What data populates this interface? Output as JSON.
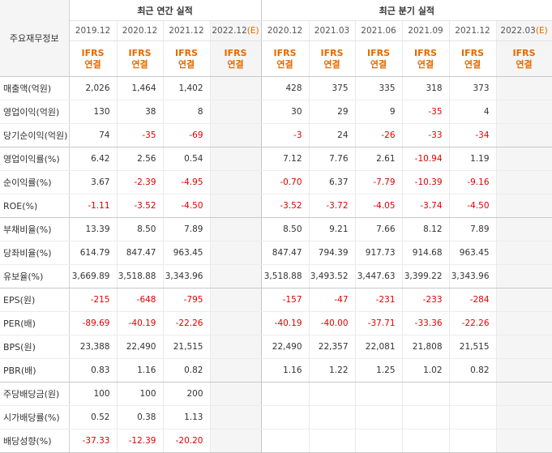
{
  "header": {
    "row_label_title": "주요재무정보",
    "annual_title": "최근 연간 실적",
    "quarterly_title": "최근 분기 실적",
    "std_label_line1": "IFRS",
    "std_label_line2": "연결",
    "annual_periods": [
      {
        "label": "2019.12",
        "estimate": false
      },
      {
        "label": "2020.12",
        "estimate": false
      },
      {
        "label": "2021.12",
        "estimate": false
      },
      {
        "label": "2022.12",
        "estimate": true
      }
    ],
    "quarterly_periods": [
      {
        "label": "2020.12",
        "estimate": false
      },
      {
        "label": "2021.03",
        "estimate": false
      },
      {
        "label": "2021.06",
        "estimate": false
      },
      {
        "label": "2021.09",
        "estimate": false
      },
      {
        "label": "2021.12",
        "estimate": false
      },
      {
        "label": "2022.03",
        "estimate": true
      }
    ],
    "estimate_mark": "(E)"
  },
  "rows": [
    {
      "label": "매출액(억원)",
      "annual": [
        "2,026",
        "1,464",
        "1,402",
        ""
      ],
      "quarterly": [
        "428",
        "375",
        "335",
        "318",
        "373",
        ""
      ]
    },
    {
      "label": "영업이익(억원)",
      "annual": [
        "130",
        "38",
        "8",
        ""
      ],
      "quarterly": [
        "30",
        "29",
        "9",
        "-35",
        "4",
        ""
      ]
    },
    {
      "label": "당기순이익(억원)",
      "annual": [
        "74",
        "-35",
        "-69",
        ""
      ],
      "quarterly": [
        "-3",
        "24",
        "-26",
        "-33",
        "-34",
        ""
      ],
      "group_end": true
    },
    {
      "label": "영업이익률(%)",
      "annual": [
        "6.42",
        "2.56",
        "0.54",
        ""
      ],
      "quarterly": [
        "7.12",
        "7.76",
        "2.61",
        "-10.94",
        "1.19",
        ""
      ]
    },
    {
      "label": "순이익률(%)",
      "annual": [
        "3.67",
        "-2.39",
        "-4.95",
        ""
      ],
      "quarterly": [
        "-0.70",
        "6.37",
        "-7.79",
        "-10.39",
        "-9.16",
        ""
      ]
    },
    {
      "label": "ROE(%)",
      "annual": [
        "-1.11",
        "-3.52",
        "-4.50",
        ""
      ],
      "quarterly": [
        "-3.52",
        "-3.72",
        "-4.05",
        "-3.74",
        "-4.50",
        ""
      ],
      "group_end": true
    },
    {
      "label": "부채비율(%)",
      "annual": [
        "13.39",
        "8.50",
        "7.89",
        ""
      ],
      "quarterly": [
        "8.50",
        "9.21",
        "7.66",
        "8.12",
        "7.89",
        ""
      ]
    },
    {
      "label": "당좌비율(%)",
      "annual": [
        "614.79",
        "847.47",
        "963.45",
        ""
      ],
      "quarterly": [
        "847.47",
        "794.39",
        "917.73",
        "914.68",
        "963.45",
        ""
      ]
    },
    {
      "label": "유보율(%)",
      "annual": [
        "3,669.89",
        "3,518.88",
        "3,343.96",
        ""
      ],
      "quarterly": [
        "3,518.88",
        "3,493.52",
        "3,447.63",
        "3,399.22",
        "3,343.96",
        ""
      ],
      "group_end": true
    },
    {
      "label": "EPS(원)",
      "annual": [
        "-215",
        "-648",
        "-795",
        ""
      ],
      "quarterly": [
        "-157",
        "-47",
        "-231",
        "-233",
        "-284",
        ""
      ]
    },
    {
      "label": "PER(배)",
      "annual": [
        "-89.69",
        "-40.19",
        "-22.26",
        ""
      ],
      "quarterly": [
        "-40.19",
        "-40.00",
        "-37.71",
        "-33.36",
        "-22.26",
        ""
      ]
    },
    {
      "label": "BPS(원)",
      "annual": [
        "23,388",
        "22,490",
        "21,515",
        ""
      ],
      "quarterly": [
        "22,490",
        "22,357",
        "22,081",
        "21,808",
        "21,515",
        ""
      ]
    },
    {
      "label": "PBR(배)",
      "annual": [
        "0.83",
        "1.16",
        "0.82",
        ""
      ],
      "quarterly": [
        "1.16",
        "1.22",
        "1.25",
        "1.02",
        "0.82",
        ""
      ],
      "group_end": true
    },
    {
      "label": "주당배당금(원)",
      "annual": [
        "100",
        "100",
        "200",
        ""
      ],
      "quarterly": [
        "",
        "",
        "",
        "",
        "",
        ""
      ]
    },
    {
      "label": "시가배당률(%)",
      "annual": [
        "0.52",
        "0.38",
        "1.13",
        ""
      ],
      "quarterly": [
        "",
        "",
        "",
        "",
        "",
        ""
      ]
    },
    {
      "label": "배당성향(%)",
      "annual": [
        "-37.33",
        "-12.39",
        "-20.20",
        ""
      ],
      "quarterly": [
        "",
        "",
        "",
        "",
        "",
        ""
      ],
      "group_end": true
    }
  ],
  "colors": {
    "negative": "#e00000",
    "accounting_standard": "#e36a00",
    "estimate_column_bg": "#f5f5f5",
    "border": "#c8c8c8"
  }
}
